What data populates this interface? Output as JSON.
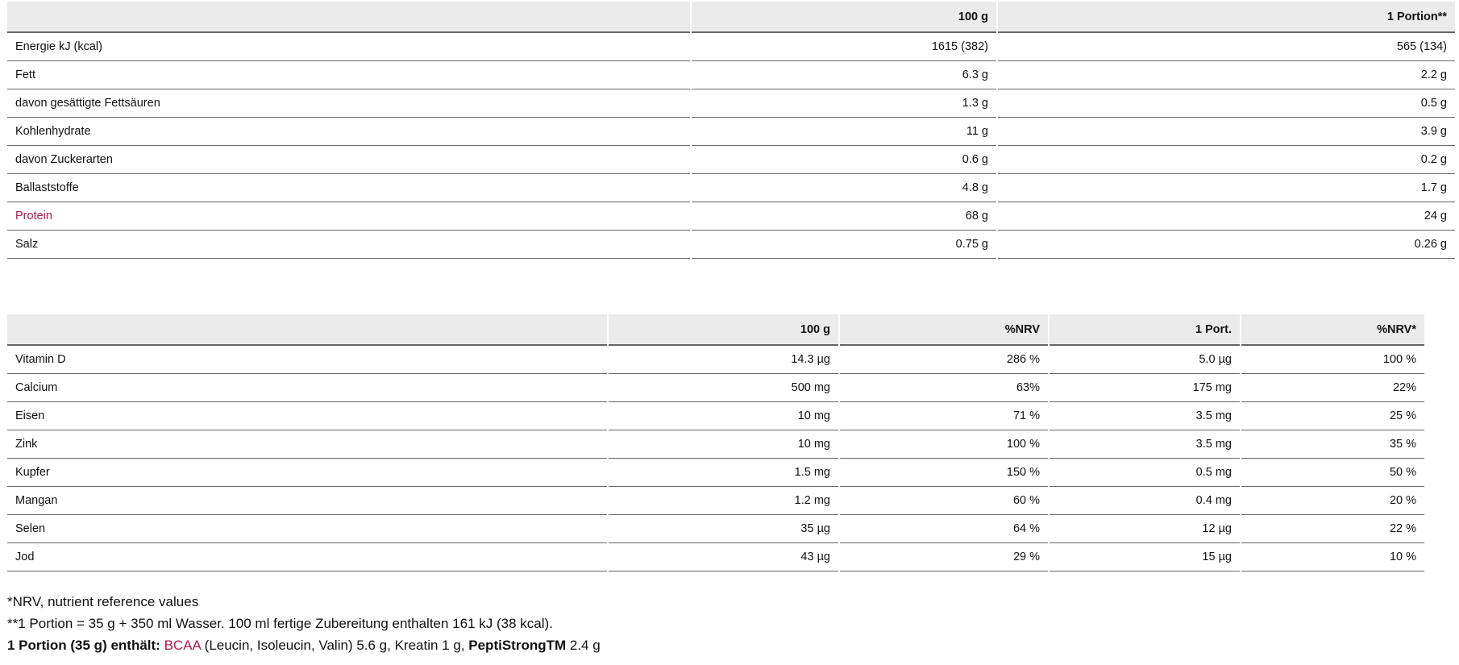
{
  "accent_color": "#b5174b",
  "macros": {
    "headers": [
      "",
      "100 g",
      "1 Portion**"
    ],
    "rows": [
      [
        "Energie kJ (kcal)",
        "1615 (382)",
        "565 (134)"
      ],
      [
        "Fett",
        "6.3 g",
        "2.2 g"
      ],
      [
        "davon gesättigte Fettsäuren",
        "1.3 g",
        "0.5 g"
      ],
      [
        "Kohlenhydrate",
        "11 g",
        "3.9 g"
      ],
      [
        "davon Zuckerarten",
        "0.6 g",
        "0.2 g"
      ],
      [
        "Ballaststoffe",
        "4.8 g",
        "1.7 g"
      ],
      [
        "Protein",
        "68 g",
        "24 g"
      ],
      [
        "Salz",
        "0.75 g",
        "0.26 g"
      ]
    ]
  },
  "micros": {
    "headers": [
      "",
      "100 g",
      "%NRV",
      "1 Port.",
      "%NRV*"
    ],
    "rows": [
      [
        "Vitamin D",
        "14.3 µg",
        "286 %",
        "5.0 µg",
        "100 %"
      ],
      [
        "Calcium",
        "500 mg",
        "63%",
        "175 mg",
        "22%"
      ],
      [
        "Eisen",
        "10 mg",
        "71 %",
        "3.5 mg",
        "25 %"
      ],
      [
        "Zink",
        "10 mg",
        "100 %",
        "3.5 mg",
        "35 %"
      ],
      [
        "Kupfer",
        "1.5 mg",
        "150 %",
        "0.5 mg",
        "50 %"
      ],
      [
        "Mangan",
        "1.2 mg",
        "60 %",
        "0.4 mg",
        "20 %"
      ],
      [
        "Selen",
        "35 µg",
        "64 %",
        "12 µg",
        "22 %"
      ],
      [
        "Jod",
        "43 µg",
        "29 %",
        "15 µg",
        "10 %"
      ]
    ]
  },
  "footnotes": {
    "nrv": "*NRV, nutrient reference values",
    "portion": "**1 Portion = 35 g + 350 ml Wasser. 100 ml fertige Zubereitung enthalten 161 kJ (38 kcal).",
    "contains_label": "1 Portion (35 g) enthält:",
    "bcaa": "BCAA",
    "bcaa_rest": " (Leucin, Isoleucin, Valin) 5.6 g, Kreatin 1 g, ",
    "pepti": "PeptiStrongTM",
    "pepti_rest": " 2.4 g"
  }
}
